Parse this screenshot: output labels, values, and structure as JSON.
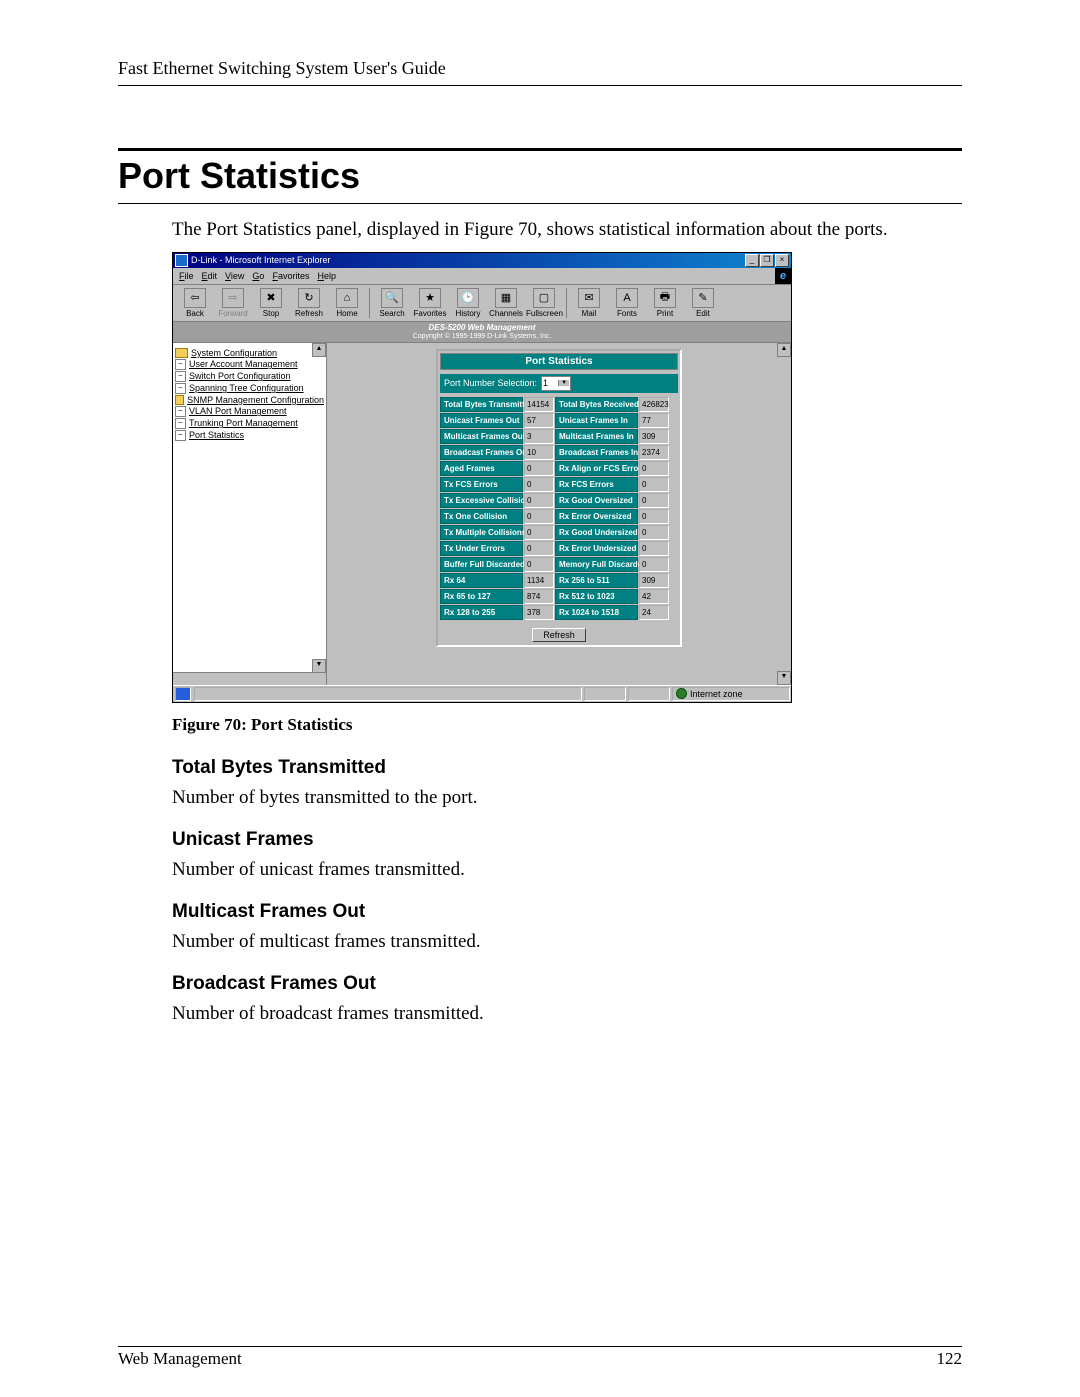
{
  "doc": {
    "running_head": "Fast Ethernet Switching System User's Guide",
    "section_title": "Port Statistics",
    "intro": "The Port Statistics panel, displayed in Figure 70, shows statistical information about the ports.",
    "fig_caption": "Figure 70: Port Statistics",
    "footer_left": "Web Management",
    "footer_page": "122",
    "terms": [
      {
        "heading": "Total Bytes Transmitted",
        "body": "Number of bytes transmitted to the port."
      },
      {
        "heading": "Unicast Frames",
        "body": "Number of unicast frames transmitted."
      },
      {
        "heading": "Multicast Frames Out",
        "body": "Number of multicast frames transmitted."
      },
      {
        "heading": "Broadcast Frames Out",
        "body": "Number of broadcast frames transmitted."
      }
    ]
  },
  "ie": {
    "title": "D-Link - Microsoft Internet Explorer",
    "menus": [
      "File",
      "Edit",
      "View",
      "Go",
      "Favorites",
      "Help"
    ],
    "toolbar": [
      {
        "label": "Back",
        "glyph": "⇦",
        "disabled": false
      },
      {
        "label": "Forward",
        "glyph": "⇨",
        "disabled": true
      },
      {
        "label": "Stop",
        "glyph": "✖",
        "disabled": false
      },
      {
        "label": "Refresh",
        "glyph": "↻",
        "disabled": false
      },
      {
        "label": "Home",
        "glyph": "⌂",
        "disabled": false
      },
      {
        "sep": true
      },
      {
        "label": "Search",
        "glyph": "🔍",
        "disabled": false
      },
      {
        "label": "Favorites",
        "glyph": "★",
        "disabled": false
      },
      {
        "label": "History",
        "glyph": "🕑",
        "disabled": false
      },
      {
        "label": "Channels",
        "glyph": "▦",
        "disabled": false
      },
      {
        "label": "Fullscreen",
        "glyph": "▢",
        "disabled": false
      },
      {
        "sep": true
      },
      {
        "label": "Mail",
        "glyph": "✉",
        "disabled": false
      },
      {
        "label": "Fonts",
        "glyph": "A",
        "disabled": false
      },
      {
        "label": "Print",
        "glyph": "🖶",
        "disabled": false
      },
      {
        "label": "Edit",
        "glyph": "✎",
        "disabled": false
      }
    ],
    "banner_line1": "DES-5200 Web Management",
    "banner_line2": "Copyright © 1995-1999 D-Link Systems, Inc.",
    "sidebar": [
      {
        "type": "folder",
        "label": "System Configuration"
      },
      {
        "type": "page",
        "label": "User Account Management"
      },
      {
        "type": "page",
        "label": "Switch Port Configuration"
      },
      {
        "type": "page",
        "label": "Spanning Tree Configuration"
      },
      {
        "type": "folder",
        "label": "SNMP Management Configuration"
      },
      {
        "type": "page",
        "label": "VLAN Port Management"
      },
      {
        "type": "page",
        "label": "Trunking Port Management"
      },
      {
        "type": "page",
        "label": "Port Statistics"
      }
    ],
    "status_zone": "Internet zone"
  },
  "stats": {
    "panel_title": "Port Statistics",
    "selector_label": "Port Number Selection:",
    "selector_value": "1",
    "refresh_label": "Refresh",
    "colors": {
      "header_bg": "#008080",
      "header_fg": "#ffffff",
      "panel_bg": "#bfbfbf",
      "value_bg": "#bfbfbf"
    },
    "rows": [
      {
        "l": "Total Bytes Transmitted",
        "lv": "14154",
        "r": "Total Bytes Received",
        "rv": "426823"
      },
      {
        "l": "Unicast Frames Out",
        "lv": "57",
        "r": "Unicast Frames In",
        "rv": "77"
      },
      {
        "l": "Multicast Frames Out",
        "lv": "3",
        "r": "Multicast Frames In",
        "rv": "309"
      },
      {
        "l": "Broadcast Frames Out",
        "lv": "10",
        "r": "Broadcast Frames In",
        "rv": "2374"
      },
      {
        "l": "Aged Frames",
        "lv": "0",
        "r": "Rx Align or FCS Errors",
        "rv": "0"
      },
      {
        "l": "Tx FCS Errors",
        "lv": "0",
        "r": "Rx FCS Errors",
        "rv": "0"
      },
      {
        "l": "Tx Excessive Collision",
        "lv": "0",
        "r": "Rx Good Oversized",
        "rv": "0"
      },
      {
        "l": "Tx One Collision",
        "lv": "0",
        "r": "Rx Error Oversized",
        "rv": "0"
      },
      {
        "l": "Tx Multiple Collisions",
        "lv": "0",
        "r": "Rx Good Undersized",
        "rv": "0"
      },
      {
        "l": "Tx Under Errors",
        "lv": "0",
        "r": "Rx Error Undersized",
        "rv": "0"
      },
      {
        "l": "Buffer Full Discarded",
        "lv": "0",
        "r": "Memory Full Discarded",
        "rv": "0"
      },
      {
        "l": "Rx 64",
        "lv": "1134",
        "r": "Rx 256 to 511",
        "rv": "309"
      },
      {
        "l": "Rx 65 to 127",
        "lv": "874",
        "r": "Rx 512 to 1023",
        "rv": "42"
      },
      {
        "l": "Rx 128 to 255",
        "lv": "378",
        "r": "Rx 1024 to 1518",
        "rv": "24"
      }
    ]
  }
}
